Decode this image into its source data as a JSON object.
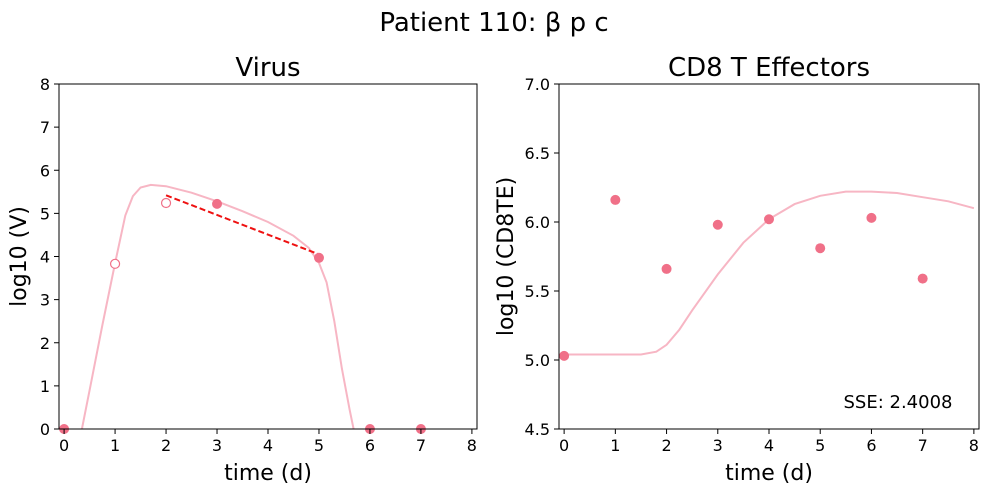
{
  "figure": {
    "suptitle": "Patient 110: β p c"
  },
  "colors": {
    "points": "#f07088",
    "model": "#f7b6c4",
    "fit_line": "#ee1111"
  },
  "chart_data": [
    {
      "type": "scatter",
      "title": "Virus",
      "xlabel": "time (d)",
      "ylabel": "log10 (V)",
      "xlim": [
        -0.1,
        8.1
      ],
      "ylim": [
        0,
        8
      ],
      "xticks": [
        0,
        1,
        2,
        3,
        4,
        5,
        6,
        7,
        8
      ],
      "yticks": [
        0,
        1,
        2,
        3,
        4,
        5,
        6,
        7,
        8
      ],
      "xtick_labels": [
        "0",
        "1",
        "2",
        "3",
        "4",
        "5",
        "6",
        "7",
        "8"
      ],
      "ytick_labels": [
        "0",
        "1",
        "2",
        "3",
        "4",
        "5",
        "6",
        "7",
        "8"
      ],
      "observed": [
        {
          "x": 0,
          "y": 0
        },
        {
          "x": 3,
          "y": 5.22
        },
        {
          "x": 5,
          "y": 3.97
        },
        {
          "x": 6,
          "y": 0
        },
        {
          "x": 7,
          "y": 0
        }
      ],
      "open_points": [
        {
          "x": 1,
          "y": 3.83
        },
        {
          "x": 2,
          "y": 5.24
        }
      ],
      "fit_line": [
        {
          "x": 2,
          "y": 5.42
        },
        {
          "x": 5,
          "y": 4.05
        }
      ],
      "model": [
        {
          "x": 0.35,
          "y": 0
        },
        {
          "x": 0.5,
          "y": 0.9
        },
        {
          "x": 0.75,
          "y": 2.4
        },
        {
          "x": 1.0,
          "y": 3.85
        },
        {
          "x": 1.2,
          "y": 4.95
        },
        {
          "x": 1.35,
          "y": 5.4
        },
        {
          "x": 1.5,
          "y": 5.6
        },
        {
          "x": 1.7,
          "y": 5.66
        },
        {
          "x": 2.0,
          "y": 5.63
        },
        {
          "x": 2.5,
          "y": 5.48
        },
        {
          "x": 3.0,
          "y": 5.28
        },
        {
          "x": 3.5,
          "y": 5.05
        },
        {
          "x": 4.0,
          "y": 4.8
        },
        {
          "x": 4.5,
          "y": 4.48
        },
        {
          "x": 4.8,
          "y": 4.2
        },
        {
          "x": 5.0,
          "y": 3.85
        },
        {
          "x": 5.15,
          "y": 3.4
        },
        {
          "x": 5.3,
          "y": 2.5
        },
        {
          "x": 5.45,
          "y": 1.4
        },
        {
          "x": 5.6,
          "y": 0.45
        },
        {
          "x": 5.68,
          "y": 0
        }
      ]
    },
    {
      "type": "scatter",
      "title": "CD8 T Effectors",
      "xlabel": "time (d)",
      "ylabel": "log10 (CD8TE)",
      "xlim": [
        -0.1,
        8.1
      ],
      "ylim": [
        4.5,
        7.0
      ],
      "xticks": [
        0,
        1,
        2,
        3,
        4,
        5,
        6,
        7,
        8
      ],
      "yticks": [
        4.5,
        5.0,
        5.5,
        6.0,
        6.5,
        7.0
      ],
      "xtick_labels": [
        "0",
        "1",
        "2",
        "3",
        "4",
        "5",
        "6",
        "7",
        "8"
      ],
      "ytick_labels": [
        "4.5",
        "5.0",
        "5.5",
        "6.0",
        "6.5",
        "7.0"
      ],
      "observed": [
        {
          "x": 0,
          "y": 5.03
        },
        {
          "x": 1,
          "y": 6.16
        },
        {
          "x": 2,
          "y": 5.66
        },
        {
          "x": 3,
          "y": 5.98
        },
        {
          "x": 4,
          "y": 6.02
        },
        {
          "x": 5,
          "y": 5.81
        },
        {
          "x": 6,
          "y": 6.03
        },
        {
          "x": 7,
          "y": 5.59
        }
      ],
      "model": [
        {
          "x": 0,
          "y": 5.04
        },
        {
          "x": 0.5,
          "y": 5.04
        },
        {
          "x": 1.0,
          "y": 5.04
        },
        {
          "x": 1.5,
          "y": 5.04
        },
        {
          "x": 1.8,
          "y": 5.06
        },
        {
          "x": 2.0,
          "y": 5.11
        },
        {
          "x": 2.25,
          "y": 5.22
        },
        {
          "x": 2.5,
          "y": 5.36
        },
        {
          "x": 3.0,
          "y": 5.62
        },
        {
          "x": 3.5,
          "y": 5.85
        },
        {
          "x": 4.0,
          "y": 6.02
        },
        {
          "x": 4.5,
          "y": 6.13
        },
        {
          "x": 5.0,
          "y": 6.19
        },
        {
          "x": 5.5,
          "y": 6.22
        },
        {
          "x": 6.0,
          "y": 6.22
        },
        {
          "x": 6.5,
          "y": 6.21
        },
        {
          "x": 7.0,
          "y": 6.18
        },
        {
          "x": 7.5,
          "y": 6.15
        },
        {
          "x": 8.0,
          "y": 6.1
        }
      ],
      "annotation": "SSE: 2.4008"
    }
  ]
}
